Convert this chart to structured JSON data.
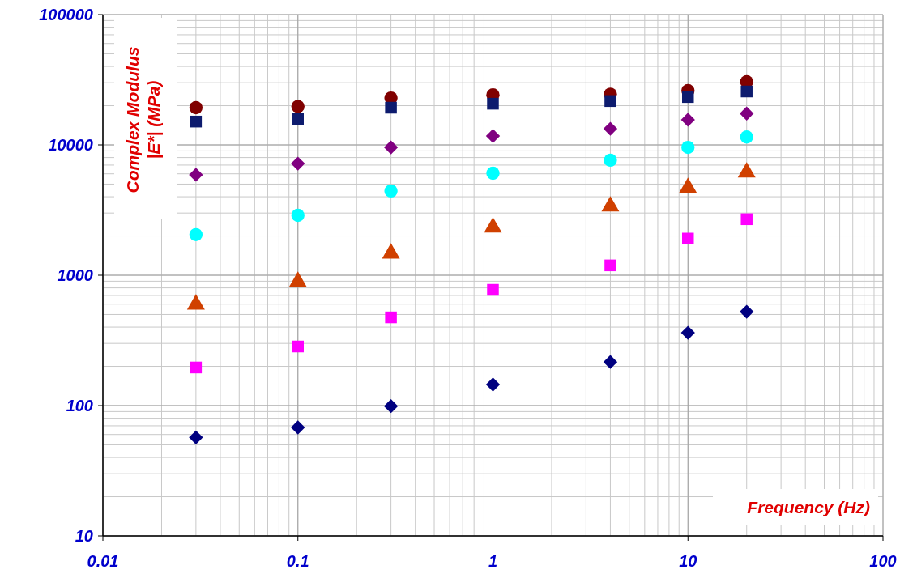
{
  "chart_data": {
    "type": "scatter",
    "xlabel": "Frequency (Hz)",
    "ylabel": "Complex Modulus\n|E*| (MPa)",
    "log": "xy",
    "grid": true,
    "xlim": [
      0.01,
      100
    ],
    "xticks": [
      0.01,
      0.1,
      1,
      10,
      100
    ],
    "ylim": [
      10,
      100000
    ],
    "yticks": [
      10,
      100,
      1000,
      10000,
      100000
    ],
    "x": [
      0.03,
      0.1,
      0.3,
      1,
      4,
      10,
      20
    ],
    "series": [
      {
        "color": "#800000",
        "marker": "circle",
        "values": [
          19300,
          19700,
          22900,
          24200,
          24500,
          26100,
          30500
        ]
      },
      {
        "color": "#0d1b6e",
        "marker": "square",
        "values": [
          15100,
          15800,
          19300,
          20700,
          21700,
          23300,
          25700
        ]
      },
      {
        "color": "#800080",
        "marker": "diamond",
        "values": [
          5900,
          7190,
          9570,
          11700,
          13300,
          15600,
          17400
        ]
      },
      {
        "color": "#00ffff",
        "marker": "circle",
        "values": [
          2050,
          2880,
          4430,
          6060,
          7630,
          9570,
          11500
        ]
      },
      {
        "color": "#d04000",
        "marker": "triangle",
        "values": [
          597,
          891,
          1470,
          2330,
          3380,
          4690,
          6150
        ]
      },
      {
        "color": "#ff00ff",
        "marker": "square",
        "values": [
          196,
          284,
          475,
          773,
          1190,
          1910,
          2690
        ]
      },
      {
        "color": "#000080",
        "marker": "diamond",
        "values": [
          57,
          68,
          99,
          145,
          216,
          362,
          525
        ]
      }
    ]
  }
}
